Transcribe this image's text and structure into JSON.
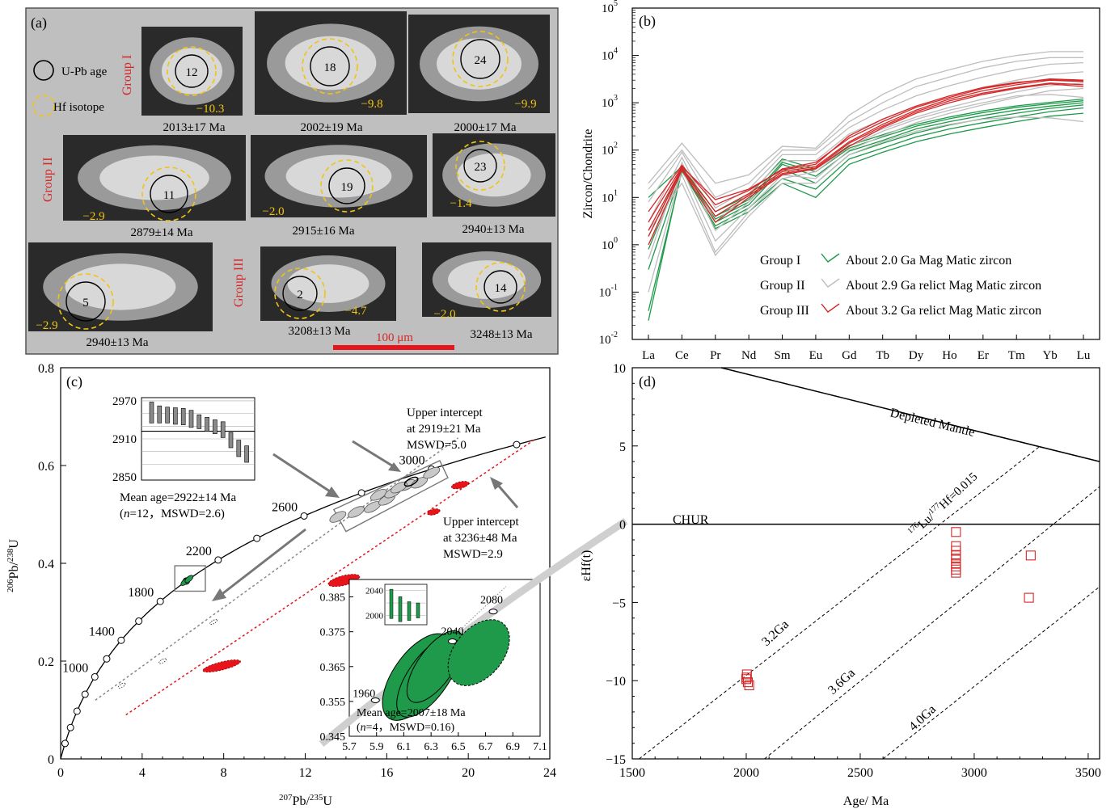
{
  "panel_a": {
    "letter": "(a)",
    "legend": {
      "upb": "U-Pb age",
      "hf": "Hf isotope"
    },
    "groups": {
      "g1": "Group I",
      "g2": "Group II",
      "g3": "Group III"
    },
    "scale": "100 μm",
    "grains": [
      {
        "id": "12",
        "eps": "−10.3",
        "age": "2013±17 Ma"
      },
      {
        "id": "18",
        "eps": "−9.8",
        "age": "2002±19 Ma"
      },
      {
        "id": "24",
        "eps": "−9.9",
        "age": "2000±17 Ma"
      },
      {
        "id": "11",
        "eps": "−2.9",
        "age": "2879±14 Ma"
      },
      {
        "id": "19",
        "eps": "−2.0",
        "age": "2915±16 Ma"
      },
      {
        "id": "23",
        "eps": "−1.4",
        "age": "2940±13 Ma"
      },
      {
        "id": "5",
        "eps": "−2.9",
        "age": "2940±13 Ma"
      },
      {
        "id": "2",
        "eps": "−4.7",
        "age": "3208±13 Ma"
      },
      {
        "id": "14",
        "eps": "−2.0",
        "age": "3248±13 Ma"
      }
    ]
  },
  "chart_data": [
    {
      "panel": "(b)",
      "type": "line",
      "ylabel": "Zircon/Chondrite",
      "yscale": "log",
      "ylim": [
        0.01,
        100000
      ],
      "ytick_exponents": [
        "-2",
        "-1",
        "0",
        "1",
        "2",
        "3",
        "4",
        "5"
      ],
      "categories": [
        "La",
        "Ce",
        "Pr",
        "Nd",
        "Sm",
        "Eu",
        "Gd",
        "Tb",
        "Dy",
        "Ho",
        "Er",
        "Tm",
        "Yb",
        "Lu"
      ],
      "legend": [
        {
          "group": "Group I",
          "label": "About 2.0 Ga  Mag Matic zircon",
          "color": "#1e9a4a"
        },
        {
          "group": "Group II",
          "label": "About 2.9 Ga relict  Mag Matic zircon",
          "color": "#bdbdbd"
        },
        {
          "group": "Group III",
          "label": "About 3.2 Ga relict  Mag Matic zircon",
          "color": "#d62728"
        }
      ],
      "series": [
        {
          "group": 1,
          "values": [
            0.025,
            40,
            2.2,
            5,
            20,
            10,
            50,
            90,
            150,
            220,
            300,
            400,
            520,
            600
          ]
        },
        {
          "group": 1,
          "values": [
            0.04,
            36,
            2.5,
            6,
            25,
            15,
            65,
            110,
            190,
            280,
            380,
            500,
            650,
            780
          ]
        },
        {
          "group": 1,
          "values": [
            0.3,
            38,
            3,
            7,
            40,
            20,
            80,
            140,
            230,
            340,
            460,
            600,
            760,
            900
          ]
        },
        {
          "group": 1,
          "values": [
            0.8,
            40,
            3.5,
            8,
            50,
            28,
            95,
            160,
            280,
            400,
            540,
            700,
            850,
            1000
          ]
        },
        {
          "group": 1,
          "values": [
            1.5,
            42,
            4,
            9,
            55,
            35,
            110,
            190,
            320,
            460,
            620,
            800,
            950,
            1100
          ]
        },
        {
          "group": 1,
          "values": [
            10,
            45,
            5,
            11,
            65,
            40,
            125,
            210,
            350,
            500,
            680,
            860,
            1020,
            1200
          ]
        },
        {
          "group": 2,
          "values": [
            0.1,
            40,
            1.2,
            6,
            30,
            25,
            100,
            200,
            380,
            600,
            900,
            1300,
            1800,
            2000
          ]
        },
        {
          "group": 2,
          "values": [
            0.5,
            55,
            2,
            8,
            40,
            40,
            150,
            280,
            500,
            800,
            1200,
            1700,
            2300,
            2600
          ]
        },
        {
          "group": 2,
          "values": [
            1,
            30,
            0.7,
            5,
            25,
            35,
            120,
            250,
            450,
            700,
            1000,
            1400,
            1500,
            1300
          ]
        },
        {
          "group": 2,
          "values": [
            3,
            70,
            3,
            12,
            60,
            60,
            220,
            450,
            850,
            1400,
            2100,
            3000,
            4000,
            4500
          ]
        },
        {
          "group": 2,
          "values": [
            8,
            90,
            6,
            15,
            80,
            80,
            300,
            700,
            1400,
            2300,
            3500,
            5000,
            6500,
            7000
          ]
        },
        {
          "group": 2,
          "values": [
            15,
            100,
            10,
            20,
            100,
            100,
            400,
            1000,
            2200,
            3500,
            5500,
            7500,
            9000,
            9000
          ]
        },
        {
          "group": 2,
          "values": [
            20,
            140,
            20,
            30,
            120,
            110,
            550,
            1500,
            3200,
            5000,
            7500,
            10000,
            12000,
            12000
          ]
        },
        {
          "group": 2,
          "values": [
            2,
            20,
            0.6,
            4,
            20,
            20,
            80,
            150,
            250,
            350,
            450,
            500,
            480,
            400
          ]
        },
        {
          "group": 3,
          "values": [
            1,
            38,
            3,
            10,
            30,
            40,
            120,
            300,
            600,
            1000,
            1500,
            2000,
            2500,
            2200
          ]
        },
        {
          "group": 3,
          "values": [
            2,
            42,
            5,
            12,
            35,
            45,
            150,
            350,
            700,
            1200,
            1800,
            2400,
            3000,
            2800
          ]
        },
        {
          "group": 3,
          "values": [
            5,
            48,
            7,
            14,
            40,
            55,
            180,
            400,
            800,
            1300,
            2000,
            2600,
            3200,
            3000
          ]
        },
        {
          "group": 3,
          "values": [
            3,
            45,
            9,
            15,
            38,
            50,
            200,
            450,
            850,
            1400,
            2100,
            2700,
            3100,
            2900
          ]
        },
        {
          "group": 3,
          "values": [
            1.5,
            40,
            4,
            11,
            32,
            42,
            140,
            320,
            650,
            1100,
            1600,
            2100,
            2600,
            2400
          ]
        }
      ]
    },
    {
      "panel": "(c)",
      "type": "scatter",
      "xlabel_base": "Pb/",
      "xlabel_sup1": "207",
      "xlabel_sup2": "235",
      "xlabel_end": "U",
      "ylabel_sup1": "206",
      "ylabel_base": "Pb/",
      "ylabel_sup2": "238",
      "ylabel_end": "U",
      "xlim": [
        0,
        24
      ],
      "ylim": [
        0,
        0.8
      ],
      "xticks": [
        "0",
        "4",
        "8",
        "12",
        "16",
        "20",
        "24"
      ],
      "yticks": [
        "0",
        "0.2",
        "0.4",
        "0.6",
        "0.8"
      ],
      "concordia_ages": [
        1000,
        1400,
        1800,
        2200,
        2600,
        3000
      ],
      "concordia_labels": [
        "1000",
        "1400",
        "1800",
        "2200",
        "2600",
        "3000"
      ],
      "annotations": {
        "upper1": [
          "Upper intercept",
          "at 2919±21 Ma",
          "MSWD=5.0"
        ],
        "upper2": [
          "Upper intercept",
          "at 3236±48 Ma",
          "MSWD=2.9"
        ],
        "mean1": "Mean age=2922±14 Ma",
        "mean1_n_italic": "n",
        "mean1_rest": "=12，MSWD=2.6)"
      },
      "inset1_ticks": [
        "2970",
        "2910",
        "2850"
      ],
      "inset1_bars": [
        [
          2968,
          2935
        ],
        [
          2962,
          2935
        ],
        [
          2960,
          2935
        ],
        [
          2959,
          2933
        ],
        [
          2958,
          2932
        ],
        [
          2955,
          2928
        ],
        [
          2948,
          2926
        ],
        [
          2944,
          2922
        ],
        [
          2940,
          2918
        ],
        [
          2937,
          2912
        ],
        [
          2920,
          2896
        ],
        [
          2908,
          2882
        ],
        [
          2899,
          2873
        ]
      ],
      "inset2": {
        "xlim": [
          5.7,
          7.1
        ],
        "ylim": [
          0.345,
          0.39
        ],
        "xticks": [
          "5.7",
          "5.9",
          "6.1",
          "6.3",
          "6.5",
          "6.7",
          "6.9",
          "7.1"
        ],
        "yticks": [
          "0.345",
          "0.355",
          "0.365",
          "0.375",
          "0.385"
        ],
        "concordia_labels": [
          "1960",
          "2040",
          "2080"
        ],
        "mean": "Mean age=2007±18 Ma",
        "mean_n_italic": "n",
        "mean_rest": "=4，MSWD=0.16)",
        "bars_ticks": [
          "2040",
          "2000"
        ],
        "bars": [
          [
            2042,
            1995
          ],
          [
            2030,
            1990
          ],
          [
            2022,
            1992
          ],
          [
            2020,
            1996
          ]
        ]
      }
    },
    {
      "panel": "(d)",
      "type": "scatter",
      "xlabel": "Age/ Ma",
      "ylabel": "εHf(t)",
      "xlim": [
        1500,
        3550
      ],
      "ylim": [
        -15,
        10
      ],
      "xticks": [
        1500,
        2000,
        2500,
        3000,
        3500
      ],
      "xtick_labels": [
        "1500",
        "2000",
        "2500",
        "3000",
        "3500"
      ],
      "yticks": [
        -15,
        -10,
        -5,
        0,
        5,
        10
      ],
      "ytick_labels": [
        "−15",
        "−10",
        "−5",
        "0",
        "5",
        "10"
      ],
      "lines": {
        "dm": "Depleted Mantle",
        "chur": "CHUR",
        "lu_sup1": "176",
        "lu_base": "Lu/",
        "lu_sup2": "177",
        "lu_end": "Hf=0.015",
        "g32": "3.2Ga",
        "g36": "3.6Ga",
        "g40": "4.0Ga"
      },
      "points": [
        {
          "age": 2013,
          "eps": -10.3
        },
        {
          "age": 2002,
          "eps": -9.8
        },
        {
          "age": 2000,
          "eps": -9.9
        },
        {
          "age": 2007,
          "eps": -10.1
        },
        {
          "age": 2003,
          "eps": -9.6
        },
        {
          "age": 2920,
          "eps": -0.5
        },
        {
          "age": 2920,
          "eps": -1.4
        },
        {
          "age": 2920,
          "eps": -1.7
        },
        {
          "age": 2920,
          "eps": -2.0
        },
        {
          "age": 2920,
          "eps": -2.2
        },
        {
          "age": 2920,
          "eps": -2.5
        },
        {
          "age": 2920,
          "eps": -2.7
        },
        {
          "age": 2920,
          "eps": -2.9
        },
        {
          "age": 2920,
          "eps": -3.1
        },
        {
          "age": 3248,
          "eps": -2.0
        },
        {
          "age": 3240,
          "eps": -4.7
        }
      ]
    }
  ]
}
